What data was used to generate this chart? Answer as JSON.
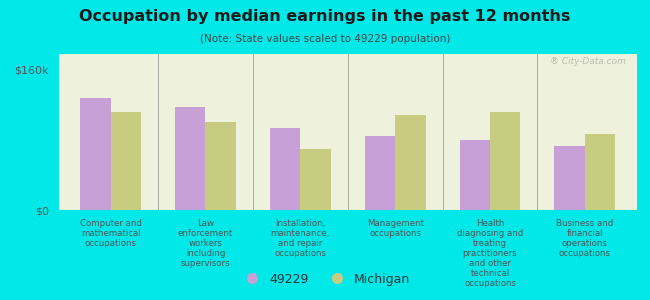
{
  "title": "Occupation by median earnings in the past 12 months",
  "subtitle": "(Note: State values scaled to 49229 population)",
  "background_color": "#00e8e8",
  "plot_bg_color": "#eef2dc",
  "categories": [
    "Computer and\nmathematical\noccupations",
    "Law\nenforcement\nworkers\nincluding\nsupervisors",
    "Installation,\nmaintenance,\nand repair\noccupations",
    "Management\noccupations",
    "Health\ndiagnosing and\ntreating\npractitioners\nand other\ntechnical\noccupations",
    "Business and\nfinancial\noperations\noccupations"
  ],
  "values_49229": [
    128000,
    118000,
    93000,
    85000,
    80000,
    73000
  ],
  "values_michigan": [
    112000,
    100000,
    70000,
    108000,
    112000,
    87000
  ],
  "color_49229": "#c8a0d8",
  "color_michigan": "#c8cc80",
  "ytick_values": [
    0,
    160000
  ],
  "ylabel_ticks": [
    "$0",
    "$160k"
  ],
  "ylim": [
    0,
    178000
  ],
  "legend_labels": [
    "49229",
    "Michigan"
  ],
  "watermark": "® City-Data.com"
}
